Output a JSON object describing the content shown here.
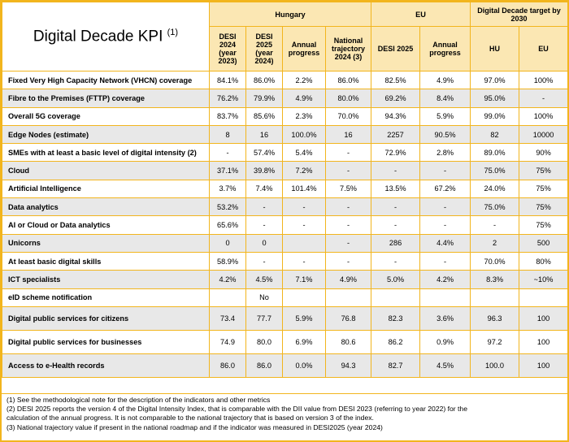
{
  "header": {
    "title": "Digital Decade KPI",
    "title_sup": "(1)",
    "group_hungary": "Hungary",
    "group_eu": "EU",
    "group_target": "Digital Decade target by 2030",
    "col_desi2024": "DESI 2024 (year 2023)",
    "col_desi2025": "DESI 2025 (year 2024)",
    "col_hu_annual": "Annual progress",
    "col_trajectory": "National trajectory 2024 (3)",
    "col_eu_desi2025": "DESI 2025",
    "col_eu_annual": "Annual progress",
    "col_target_hu": "HU",
    "col_target_eu": "EU"
  },
  "rows": [
    {
      "label": "Fixed Very High Capacity Network (VHCN) coverage",
      "desi2024": "84.1%",
      "desi2025": "86.0%",
      "annual": "2.2%",
      "traj": "86.0%",
      "eu_desi": "82.5%",
      "eu_annual": "4.9%",
      "target_hu": "97.0%",
      "target_eu": "100%"
    },
    {
      "label": "Fibre to the Premises (FTTP) coverage",
      "desi2024": "76.2%",
      "desi2025": "79.9%",
      "annual": "4.9%",
      "traj": "80.0%",
      "eu_desi": "69.2%",
      "eu_annual": "8.4%",
      "target_hu": "95.0%",
      "target_eu": "-"
    },
    {
      "label": "Overall 5G coverage",
      "desi2024": "83.7%",
      "desi2025": "85.6%",
      "annual": "2.3%",
      "traj": "70.0%",
      "eu_desi": "94.3%",
      "eu_annual": "5.9%",
      "target_hu": "99.0%",
      "target_eu": "100%"
    },
    {
      "label": "Edge Nodes (estimate)",
      "desi2024": "8",
      "desi2025": "16",
      "annual": "100.0%",
      "traj": "16",
      "eu_desi": "2257",
      "eu_annual": "90.5%",
      "target_hu": "82",
      "target_eu": "10000"
    },
    {
      "label": "SMEs with at least a basic level of digital intensity (2)",
      "desi2024": "-",
      "desi2025": "57.4%",
      "annual": "5.4%",
      "traj": "-",
      "eu_desi": "72.9%",
      "eu_annual": "2.8%",
      "target_hu": "89.0%",
      "target_eu": "90%"
    },
    {
      "label": "Cloud",
      "desi2024": "37.1%",
      "desi2025": "39.8%",
      "annual": "7.2%",
      "traj": "-",
      "eu_desi": "-",
      "eu_annual": "-",
      "target_hu": "75.0%",
      "target_eu": "75%"
    },
    {
      "label": "Artificial Intelligence",
      "desi2024": "3.7%",
      "desi2025": "7.4%",
      "annual": "101.4%",
      "traj": "7.5%",
      "eu_desi": "13.5%",
      "eu_annual": "67.2%",
      "target_hu": "24.0%",
      "target_eu": "75%"
    },
    {
      "label": "Data analytics",
      "desi2024": "53.2%",
      "desi2025": "-",
      "annual": "-",
      "traj": "-",
      "eu_desi": "-",
      "eu_annual": "-",
      "target_hu": "75.0%",
      "target_eu": "75%"
    },
    {
      "label": "AI or Cloud or Data analytics",
      "desi2024": "65.6%",
      "desi2025": "-",
      "annual": "-",
      "traj": "-",
      "eu_desi": "-",
      "eu_annual": "-",
      "target_hu": "-",
      "target_eu": "75%"
    },
    {
      "label": "Unicorns",
      "desi2024": "0",
      "desi2025": "0",
      "annual": "",
      "traj": "-",
      "eu_desi": "286",
      "eu_annual": "4.4%",
      "target_hu": "2",
      "target_eu": "500"
    },
    {
      "label": "At least basic digital skills",
      "desi2024": "58.9%",
      "desi2025": "-",
      "annual": "-",
      "traj": "-",
      "eu_desi": "-",
      "eu_annual": "-",
      "target_hu": "70.0%",
      "target_eu": "80%"
    },
    {
      "label": "ICT specialists",
      "desi2024": "4.2%",
      "desi2025": "4.5%",
      "annual": "7.1%",
      "traj": "4.9%",
      "eu_desi": "5.0%",
      "eu_annual": "4.2%",
      "target_hu": "8.3%",
      "target_eu": "~10%"
    },
    {
      "label": "eID scheme notification",
      "desi2024": "",
      "desi2025": "No",
      "annual": "",
      "traj": "",
      "eu_desi": "",
      "eu_annual": "",
      "target_hu": "",
      "target_eu": ""
    },
    {
      "label": "Digital public services for citizens",
      "desi2024": "73.4",
      "desi2025": "77.7",
      "annual": "5.9%",
      "traj": "76.8",
      "eu_desi": "82.3",
      "eu_annual": "3.6%",
      "target_hu": "96.3",
      "target_eu": "100"
    },
    {
      "label": "Digital public services for businesses",
      "desi2024": "74.9",
      "desi2025": "80.0",
      "annual": "6.9%",
      "traj": "80.6",
      "eu_desi": "86.2",
      "eu_annual": "0.9%",
      "target_hu": "97.2",
      "target_eu": "100"
    },
    {
      "label": "Access to e-Health records",
      "desi2024": "86.0",
      "desi2025": "86.0",
      "annual": "0.0%",
      "traj": "94.3",
      "eu_desi": "82.7",
      "eu_annual": "4.5%",
      "target_hu": "100.0",
      "target_eu": "100"
    }
  ],
  "notes": [
    "(1) See the methodological note for the description of the indicators and other metrics",
    "(2) DESI 2025 reports the version 4 of the Digital Intensity Index, that is comparable with the DII value from DESI 2023 (referring to year 2022) for the",
    "calculation of the annual progress. It is not comparable to the national trajectory that is based on version 3 of the index.",
    "(3) National trajectory value if present in the national roadmap and if the indicator was measured in DESI2025 (year 2024)"
  ]
}
